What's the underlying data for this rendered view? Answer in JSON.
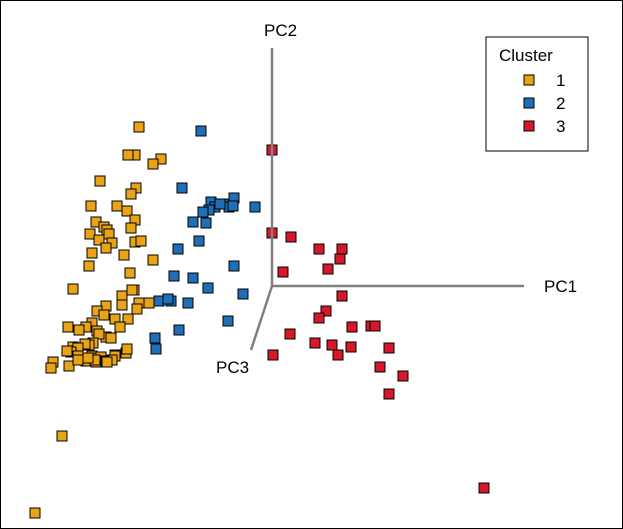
{
  "chart_data": {
    "type": "scatter",
    "title": "",
    "axes": [
      {
        "name": "PC1",
        "label": "PC1"
      },
      {
        "name": "PC2",
        "label": "PC2"
      },
      {
        "name": "PC3",
        "label": "PC3"
      }
    ],
    "axis_units": "projected biplot coordinates (x = horizontal PC1 direction, y = vertical PC2 direction, origin at axes intersection)",
    "xlim": [
      -246,
      256
    ],
    "ylim": [
      -227,
      284
    ],
    "legend": {
      "title": "Cluster",
      "position": "top-right"
    },
    "series": [
      {
        "name": "1",
        "color": "#E8A317",
        "points": [
          [
            -133,
            159
          ],
          [
            -137,
            131
          ],
          [
            -144,
            131
          ],
          [
            -111,
            127
          ],
          [
            -119,
            122
          ],
          [
            -172,
            105
          ],
          [
            -136,
            98
          ],
          [
            -141,
            92
          ],
          [
            -181,
            80
          ],
          [
            -155,
            80
          ],
          [
            -145,
            75
          ],
          [
            -176,
            64
          ],
          [
            -137,
            66
          ],
          [
            -168,
            59
          ],
          [
            -165,
            56
          ],
          [
            -141,
            58
          ],
          [
            -163,
            52
          ],
          [
            -182,
            52
          ],
          [
            -137,
            44
          ],
          [
            -173,
            46
          ],
          [
            -160,
            43
          ],
          [
            -166,
            38
          ],
          [
            -131,
            45
          ],
          [
            -148,
            31
          ],
          [
            -180,
            33
          ],
          [
            -183,
            20
          ],
          [
            -119,
            26
          ],
          [
            -142,
            13
          ],
          [
            -138,
            -4
          ],
          [
            -150,
            -10
          ],
          [
            -199,
            -3
          ],
          [
            -140,
            -4
          ],
          [
            -123,
            -17
          ],
          [
            -133,
            -17
          ],
          [
            -150,
            -19
          ],
          [
            -166,
            -20
          ],
          [
            -175,
            -25
          ],
          [
            -135,
            -23
          ],
          [
            -168,
            -29
          ],
          [
            -157,
            -33
          ],
          [
            -144,
            -33
          ],
          [
            -180,
            -37
          ],
          [
            -204,
            -41
          ],
          [
            -152,
            -41
          ],
          [
            -186,
            -41
          ],
          [
            -175,
            -45
          ],
          [
            -193,
            -44
          ],
          [
            -166,
            -51
          ],
          [
            -161,
            -52
          ],
          [
            -173,
            -48
          ],
          [
            -179,
            -57
          ],
          [
            -183,
            -59
          ],
          [
            -187,
            -58
          ],
          [
            -199,
            -61
          ],
          [
            -194,
            -62
          ],
          [
            -201,
            -66
          ],
          [
            -180,
            -70
          ],
          [
            -205,
            -65
          ],
          [
            -175,
            -72
          ],
          [
            -194,
            -70
          ],
          [
            -157,
            -69
          ],
          [
            -157,
            -70
          ],
          [
            -160,
            -74
          ],
          [
            -171,
            -71
          ],
          [
            -146,
            -67
          ],
          [
            -168,
            -75
          ],
          [
            -186,
            -75
          ],
          [
            -176,
            -76
          ],
          [
            -165,
            -76
          ],
          [
            -177,
            -74
          ],
          [
            -145,
            -63
          ],
          [
            -219,
            -76
          ],
          [
            -203,
            -80
          ],
          [
            -221,
            -82
          ],
          [
            -194,
            -74
          ],
          [
            -210,
            -150
          ],
          [
            -237,
            -227
          ],
          [
            -184,
            -72
          ]
        ]
      },
      {
        "name": "2",
        "color": "#1F6FB8",
        "points": [
          [
            -71,
            155
          ],
          [
            -90,
            98
          ],
          [
            -61,
            84
          ],
          [
            -45,
            82
          ],
          [
            -38,
            88
          ],
          [
            -57,
            79
          ],
          [
            -63,
            76
          ],
          [
            -69,
            74
          ],
          [
            -79,
            64
          ],
          [
            -17,
            79
          ],
          [
            -43,
            79
          ],
          [
            -52,
            82
          ],
          [
            -39,
            80
          ],
          [
            -66,
            63
          ],
          [
            -73,
            45
          ],
          [
            -94,
            37
          ],
          [
            -38,
            20
          ],
          [
            -98,
            10
          ],
          [
            -79,
            8
          ],
          [
            -64,
            -2
          ],
          [
            -29,
            -8
          ],
          [
            -113,
            -15
          ],
          [
            -101,
            -15
          ],
          [
            -104,
            -13
          ],
          [
            -84,
            -17
          ],
          [
            -44,
            -35
          ],
          [
            -93,
            -44
          ],
          [
            -117,
            -52
          ],
          [
            -116,
            -63
          ]
        ]
      },
      {
        "name": "3",
        "color": "#D7182A",
        "points": [
          [
            0,
            136
          ],
          [
            0,
            53
          ],
          [
            19,
            49
          ],
          [
            47,
            37
          ],
          [
            70,
            37
          ],
          [
            68,
            27
          ],
          [
            56,
            17
          ],
          [
            11,
            14
          ],
          [
            70,
            -10
          ],
          [
            54,
            -25
          ],
          [
            47,
            -32
          ],
          [
            80,
            -41
          ],
          [
            99,
            -40
          ],
          [
            103,
            -40
          ],
          [
            18,
            -48
          ],
          [
            43,
            -57
          ],
          [
            60,
            -59
          ],
          [
            79,
            -61
          ],
          [
            117,
            -62
          ],
          [
            1,
            -69
          ],
          [
            66,
            -69
          ],
          [
            108,
            -81
          ],
          [
            131,
            -90
          ],
          [
            117,
            -108
          ],
          [
            212,
            -202
          ]
        ]
      }
    ]
  }
}
